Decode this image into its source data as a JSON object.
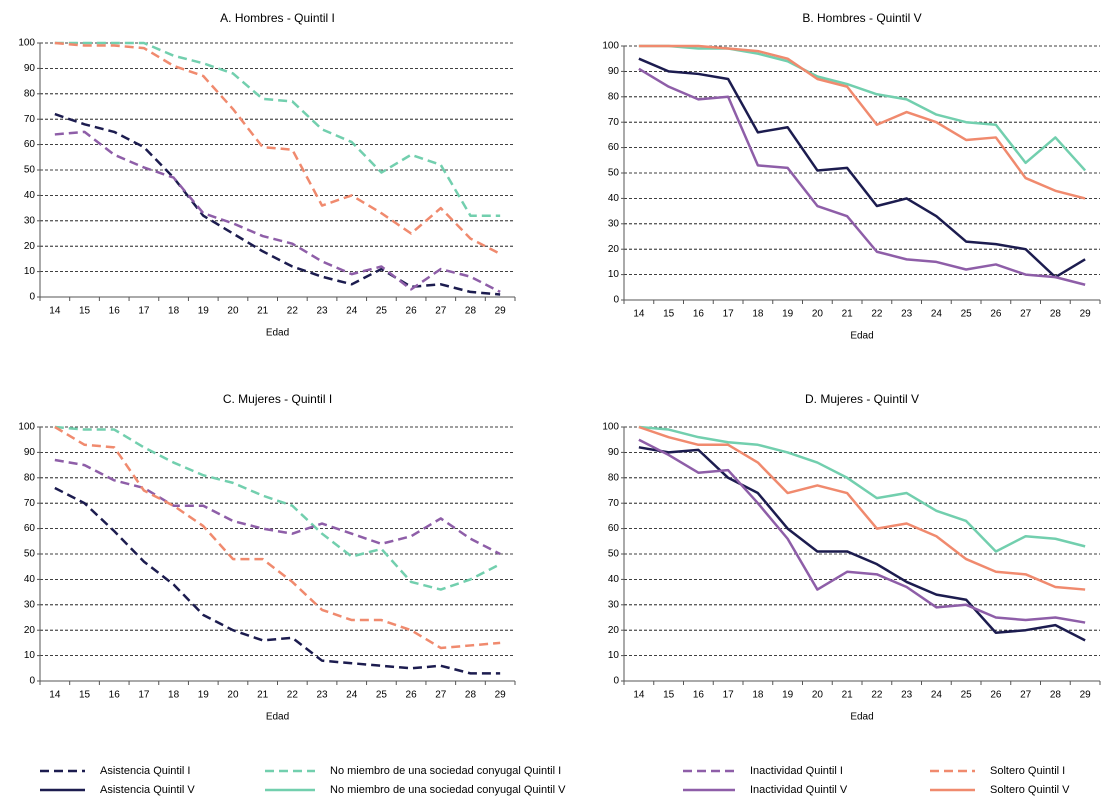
{
  "chart_data": [
    {
      "type": "line",
      "title": "A. Hombres - Quintil I",
      "xlabel": "Edad",
      "categories": [
        "14",
        "15",
        "16",
        "17",
        "18",
        "19",
        "20",
        "21",
        "22",
        "23",
        "24",
        "25",
        "26",
        "27",
        "28",
        "29"
      ],
      "ylim": [
        0,
        100
      ],
      "yticks": [
        0,
        10,
        20,
        30,
        40,
        50,
        60,
        70,
        80,
        90,
        100
      ],
      "grid": true,
      "series": [
        {
          "name": "Asistencia Quintil I",
          "color": "#1c1c4f",
          "dash": true,
          "values": [
            72,
            68,
            65,
            59,
            47,
            32,
            25,
            18,
            12,
            8,
            5,
            11,
            4,
            5,
            2,
            1
          ]
        },
        {
          "name": "No miembro de una sociedad conyugal Quintil I",
          "color": "#72cfae",
          "dash": true,
          "values": [
            100,
            100,
            100,
            100,
            95,
            92,
            88,
            78,
            77,
            66,
            61,
            49,
            56,
            52,
            32,
            32
          ]
        },
        {
          "name": "Inactividad Quintil I",
          "color": "#8e5ea8",
          "dash": true,
          "values": [
            64,
            65,
            56,
            51,
            47,
            33,
            29,
            24,
            21,
            14,
            9,
            12,
            3,
            11,
            8,
            2
          ]
        },
        {
          "name": "Soltero Quintil I",
          "color": "#f08a6e",
          "dash": true,
          "values": [
            100,
            99,
            99,
            98,
            91,
            87,
            74,
            59,
            58,
            36,
            40,
            33,
            25,
            35,
            23,
            17
          ]
        }
      ]
    },
    {
      "type": "line",
      "title": "B. Hombres - Quintil V",
      "xlabel": "Edad",
      "categories": [
        "14",
        "15",
        "16",
        "17",
        "18",
        "19",
        "20",
        "21",
        "22",
        "23",
        "24",
        "25",
        "26",
        "27",
        "28",
        "29"
      ],
      "ylim": [
        0,
        100
      ],
      "yticks": [
        0,
        10,
        20,
        30,
        40,
        50,
        60,
        70,
        80,
        90,
        100
      ],
      "grid": true,
      "series": [
        {
          "name": "Asistencia Quintil V",
          "color": "#1c1c4f",
          "dash": false,
          "values": [
            95,
            90,
            89,
            87,
            66,
            68,
            51,
            52,
            37,
            40,
            33,
            23,
            22,
            20,
            9,
            16
          ]
        },
        {
          "name": "No miembro de una sociedad conyugal Quintil V",
          "color": "#72cfae",
          "dash": false,
          "values": [
            100,
            100,
            99,
            99,
            97,
            94,
            88,
            85,
            81,
            79,
            73,
            70,
            69,
            54,
            64,
            51
          ]
        },
        {
          "name": "Inactividad Quintil V",
          "color": "#8e5ea8",
          "dash": false,
          "values": [
            91,
            84,
            79,
            80,
            53,
            52,
            37,
            33,
            19,
            16,
            15,
            12,
            14,
            10,
            9,
            6
          ]
        },
        {
          "name": "Soltero Quintil V",
          "color": "#f08a6e",
          "dash": false,
          "values": [
            100,
            100,
            100,
            99,
            98,
            95,
            87,
            84,
            69,
            74,
            70,
            63,
            64,
            48,
            43,
            40
          ]
        }
      ]
    },
    {
      "type": "line",
      "title": "C. Mujeres - Quintil I",
      "xlabel": "Edad",
      "categories": [
        "14",
        "15",
        "16",
        "17",
        "18",
        "19",
        "20",
        "21",
        "22",
        "23",
        "24",
        "25",
        "26",
        "27",
        "28",
        "29"
      ],
      "ylim": [
        0,
        100
      ],
      "yticks": [
        0,
        10,
        20,
        30,
        40,
        50,
        60,
        70,
        80,
        90,
        100
      ],
      "grid": true,
      "series": [
        {
          "name": "Asistencia Quintil I",
          "color": "#1c1c4f",
          "dash": true,
          "values": [
            76,
            70,
            59,
            47,
            38,
            26,
            20,
            16,
            17,
            8,
            7,
            6,
            5,
            6,
            3,
            3
          ]
        },
        {
          "name": "No miembro de una sociedad conyugal Quintil I",
          "color": "#72cfae",
          "dash": true,
          "values": [
            100,
            99,
            99,
            92,
            86,
            81,
            78,
            73,
            69,
            58,
            49,
            52,
            39,
            36,
            40,
            46
          ]
        },
        {
          "name": "Inactividad Quintil I",
          "color": "#8e5ea8",
          "dash": true,
          "values": [
            87,
            85,
            79,
            76,
            69,
            69,
            63,
            60,
            58,
            62,
            58,
            54,
            57,
            64,
            56,
            50
          ]
        },
        {
          "name": "Soltero Quintil I",
          "color": "#f08a6e",
          "dash": true,
          "values": [
            100,
            93,
            92,
            75,
            69,
            61,
            48,
            48,
            39,
            28,
            24,
            24,
            20,
            13,
            14,
            15
          ]
        }
      ]
    },
    {
      "type": "line",
      "title": "D. Mujeres - Quintil V",
      "xlabel": "Edad",
      "categories": [
        "14",
        "15",
        "16",
        "17",
        "18",
        "19",
        "20",
        "21",
        "22",
        "23",
        "24",
        "25",
        "26",
        "27",
        "28",
        "29"
      ],
      "ylim": [
        0,
        100
      ],
      "yticks": [
        0,
        10,
        20,
        30,
        40,
        50,
        60,
        70,
        80,
        90,
        100
      ],
      "grid": true,
      "series": [
        {
          "name": "Asistencia Quintil V",
          "color": "#1c1c4f",
          "dash": false,
          "values": [
            92,
            90,
            91,
            80,
            74,
            60,
            51,
            51,
            46,
            39,
            34,
            32,
            19,
            20,
            22,
            16
          ]
        },
        {
          "name": "No miembro de una sociedad conyugal Quintil V",
          "color": "#72cfae",
          "dash": false,
          "values": [
            100,
            99,
            96,
            94,
            93,
            90,
            86,
            80,
            72,
            74,
            67,
            63,
            51,
            57,
            56,
            53
          ]
        },
        {
          "name": "Inactividad Quintil V",
          "color": "#8e5ea8",
          "dash": false,
          "values": [
            95,
            89,
            82,
            83,
            70,
            56,
            36,
            43,
            42,
            37,
            29,
            30,
            25,
            24,
            25,
            23
          ]
        },
        {
          "name": "Soltero Quintil V",
          "color": "#f08a6e",
          "dash": false,
          "values": [
            100,
            96,
            93,
            93,
            86,
            74,
            77,
            74,
            60,
            62,
            57,
            48,
            43,
            42,
            37,
            36
          ]
        }
      ]
    }
  ]
}
